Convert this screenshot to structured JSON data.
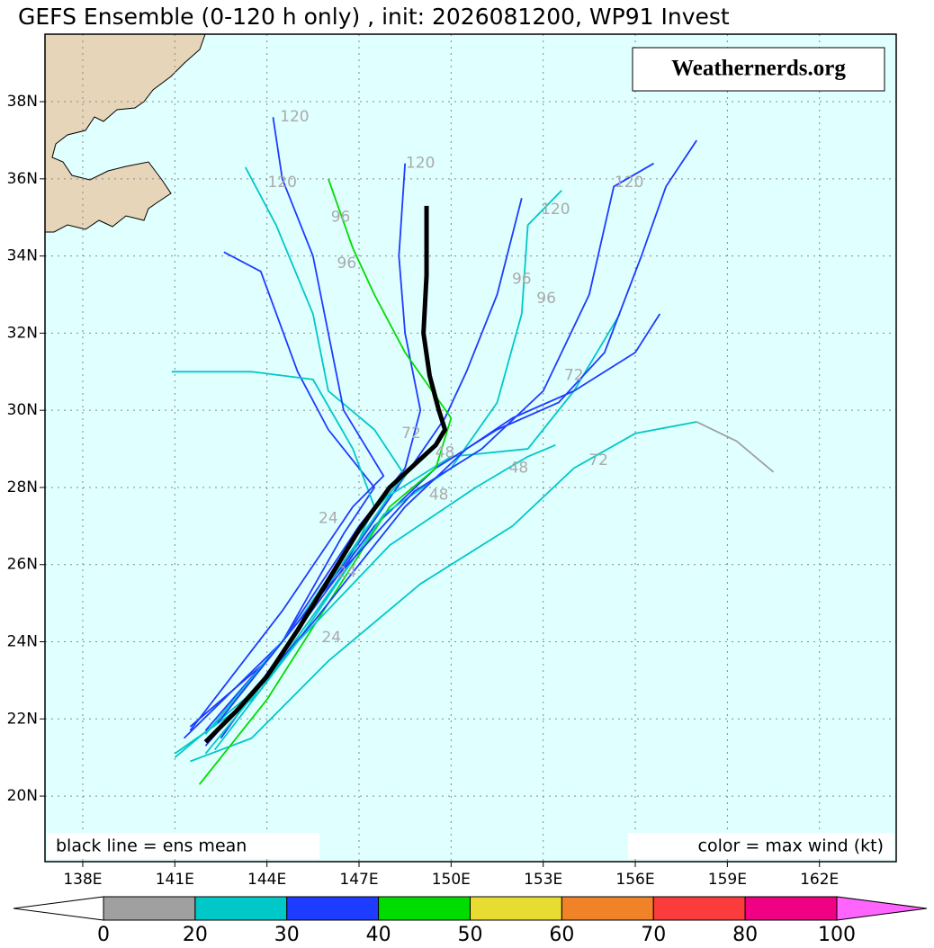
{
  "chart_data": {
    "type": "map",
    "title": "GEFS Ensemble (0-120 h only) , init: 2026081200, WP91 Invest",
    "watermark": "Weathernerds.org",
    "note_left": "black line = ens mean",
    "note_right": "color = max wind (kt)",
    "grid": true,
    "xlim": [
      136.77,
      164.5
    ],
    "ylim": [
      18.3,
      39.75
    ],
    "xticks": [
      {
        "value": 138,
        "label": "138E"
      },
      {
        "value": 141,
        "label": "141E"
      },
      {
        "value": 144,
        "label": "144E"
      },
      {
        "value": 147,
        "label": "147E"
      },
      {
        "value": 150,
        "label": "150E"
      },
      {
        "value": 153,
        "label": "153E"
      },
      {
        "value": 156,
        "label": "156E"
      },
      {
        "value": 159,
        "label": "159E"
      },
      {
        "value": 162,
        "label": "162E"
      }
    ],
    "yticks": [
      {
        "value": 20,
        "label": "20N"
      },
      {
        "value": 22,
        "label": "22N"
      },
      {
        "value": 24,
        "label": "24N"
      },
      {
        "value": 26,
        "label": "26N"
      },
      {
        "value": 28,
        "label": "28N"
      },
      {
        "value": 30,
        "label": "30N"
      },
      {
        "value": 32,
        "label": "32N"
      },
      {
        "value": 34,
        "label": "34N"
      },
      {
        "value": 36,
        "label": "36N"
      },
      {
        "value": 38,
        "label": "38N"
      }
    ],
    "series": [
      {
        "color": "#1e3cff",
        "lon": [
          141.5,
          144,
          146.5,
          148.5,
          149.8,
          150.5,
          151.5,
          152.3
        ],
        "lat": [
          21.8,
          23.5,
          26,
          28.3,
          29.8,
          31,
          33,
          35.5
        ]
      },
      {
        "color": "#00c8c8",
        "lon": [
          141,
          143.5,
          146,
          148,
          150,
          152.5,
          154,
          155.5
        ],
        "lat": [
          21.1,
          22.5,
          25.5,
          27.8,
          28.8,
          29,
          30.5,
          32.5
        ]
      },
      {
        "color": "#00c8c8",
        "lon": [
          141.5,
          143.5,
          146,
          149,
          152,
          154,
          156,
          158
        ],
        "lat": [
          20.9,
          21.5,
          23.5,
          25.5,
          27,
          28.5,
          29.4,
          29.7
        ]
      },
      {
        "color": "#a0a0a0",
        "lon": [
          158,
          159.3,
          160.5
        ],
        "lat": [
          29.7,
          29.2,
          28.4
        ]
      },
      {
        "color": "#1e3cff",
        "lon": [
          141.3,
          144.5,
          146.5,
          147.5,
          146,
          145,
          143.8,
          142.6
        ],
        "lat": [
          21.5,
          24,
          26.8,
          28,
          29.5,
          31,
          33.6,
          34.1
        ]
      },
      {
        "color": "#00c8c8",
        "lon": [
          141,
          144,
          146.5,
          147.5,
          146.8,
          145.5,
          143.5,
          140.9
        ],
        "lat": [
          21,
          23,
          25.8,
          27.5,
          29,
          30.8,
          31,
          31
        ]
      },
      {
        "color": "#1e3cff",
        "lon": [
          142,
          144.5,
          147,
          148.5,
          149,
          148.5,
          148.3,
          148.5
        ],
        "lat": [
          21.7,
          24,
          27,
          28.5,
          30,
          32,
          34,
          36.4
        ]
      },
      {
        "color": "#1e3cff",
        "lon": [
          142.5,
          145,
          147.5,
          149.5,
          151.5,
          153.5,
          155,
          156.2,
          157,
          158
        ],
        "lat": [
          21.5,
          24.3,
          27,
          28.5,
          29.5,
          30.2,
          31.5,
          34,
          35.8,
          37
        ]
      },
      {
        "color": "#00dc00",
        "lon": [
          141.8,
          144,
          146,
          148,
          149.5,
          150,
          148.5,
          147.5,
          146.8,
          146
        ],
        "lat": [
          20.3,
          22.5,
          25,
          27.5,
          28.5,
          29.8,
          31.5,
          33,
          34.2,
          36
        ]
      },
      {
        "color": "#00c8c8",
        "lon": [
          142,
          145,
          147.5,
          148.5,
          147.5,
          146,
          145.5,
          144.3,
          143.3
        ],
        "lat": [
          21.6,
          24.5,
          27.4,
          28.3,
          29.5,
          30.5,
          32.5,
          34.8,
          36.3
        ]
      },
      {
        "color": "#1e3cff",
        "lon": [
          141.5,
          144.5,
          146.8,
          147.8,
          146.5,
          146,
          145.5,
          144.5,
          144.2
        ],
        "lat": [
          21.7,
          24.8,
          27.5,
          28.3,
          30,
          32,
          34,
          36,
          37.6
        ]
      },
      {
        "color": "#00c8c8",
        "lon": [
          142.3,
          145,
          147.8,
          150,
          151.5,
          152.3,
          152.5,
          153.6
        ],
        "lat": [
          21.2,
          24,
          27.3,
          28.5,
          30.2,
          32.5,
          34.8,
          35.7
        ]
      },
      {
        "color": "#1e3cff",
        "lon": [
          142,
          145.5,
          148.5,
          150.5,
          152,
          154,
          156,
          156.8
        ],
        "lat": [
          21.3,
          24.5,
          27.5,
          29,
          29.8,
          30.5,
          31.5,
          32.5
        ]
      },
      {
        "color": "#00c8c8",
        "lon": [
          142,
          145,
          148,
          150.8,
          152.5,
          153.4
        ],
        "lat": [
          21.1,
          24,
          26.5,
          28,
          28.8,
          29.1
        ]
      },
      {
        "color": "#1e3cff",
        "lon": [
          142.4,
          145.5,
          148.8,
          151,
          153,
          154.5,
          155.3,
          156.6
        ],
        "lat": [
          21.9,
          25,
          27.9,
          29,
          30.5,
          33,
          35.8,
          36.4
        ]
      }
    ],
    "mean_track": {
      "color": "#000000",
      "lon": [
        142,
        143,
        144,
        145,
        146,
        147,
        148,
        149.5,
        149.8,
        149.6,
        149.3,
        149.1,
        149.2,
        149.2
      ],
      "lat": [
        21.4,
        22.2,
        23.1,
        24.3,
        25.6,
        26.9,
        28,
        29.1,
        29.5,
        30,
        30.9,
        32,
        33.5,
        35.3
      ]
    },
    "annotations": [
      {
        "text": "120",
        "lon": 144.9,
        "lat": 37.6
      },
      {
        "text": "120",
        "lon": 144.5,
        "lat": 35.9
      },
      {
        "text": "120",
        "lon": 149.0,
        "lat": 36.4
      },
      {
        "text": "120",
        "lon": 155.8,
        "lat": 35.9
      },
      {
        "text": "120",
        "lon": 153.4,
        "lat": 35.2
      },
      {
        "text": "96",
        "lon": 146.4,
        "lat": 35.0
      },
      {
        "text": "96",
        "lon": 146.6,
        "lat": 33.8
      },
      {
        "text": "96",
        "lon": 152.3,
        "lat": 33.4
      },
      {
        "text": "96",
        "lon": 153.1,
        "lat": 32.9
      },
      {
        "text": "72",
        "lon": 154.0,
        "lat": 30.9
      },
      {
        "text": "72",
        "lon": 154.8,
        "lat": 28.7
      },
      {
        "text": "72",
        "lon": 148.7,
        "lat": 29.4
      },
      {
        "text": "48",
        "lon": 152.2,
        "lat": 28.5
      },
      {
        "text": "48",
        "lon": 149.8,
        "lat": 28.9
      },
      {
        "text": "48",
        "lon": 149.6,
        "lat": 27.8
      },
      {
        "text": "24",
        "lon": 146.1,
        "lat": 24.1
      },
      {
        "text": "24",
        "lon": 146.0,
        "lat": 27.2
      },
      {
        "text": "24",
        "lon": 146.6,
        "lat": 25.8
      }
    ],
    "colorbar": {
      "bounds": [
        0,
        20,
        30,
        40,
        50,
        60,
        70,
        80,
        100
      ],
      "colors": [
        "#a0a0a0",
        "#00c8c8",
        "#1e3cff",
        "#00dc00",
        "#e6dc32",
        "#f08228",
        "#fa3c3c",
        "#f00082"
      ],
      "under_color": "#ffffff",
      "over_color": "#ff64ff"
    }
  }
}
